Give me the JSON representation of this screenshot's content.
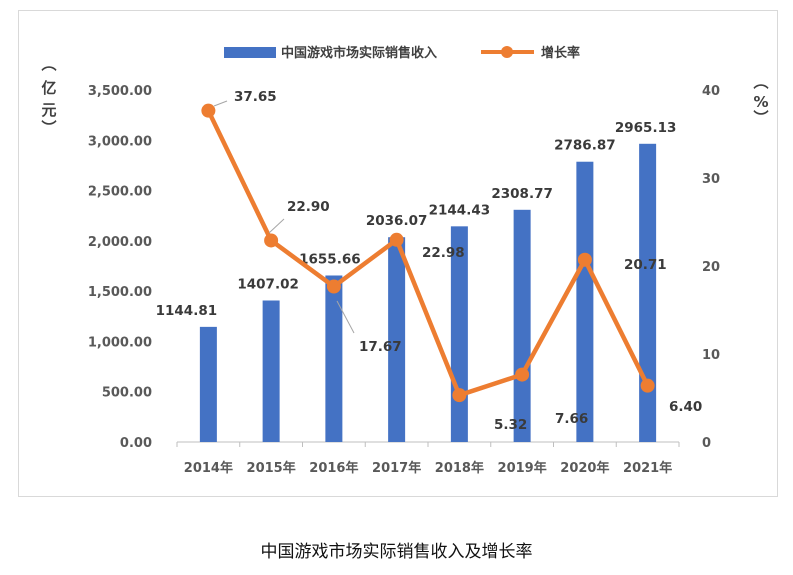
{
  "caption": "中国游戏市场实际销售收入及增长率",
  "chart_data": {
    "type": "bar",
    "categories": [
      "2014年",
      "2015年",
      "2016年",
      "2017年",
      "2018年",
      "2019年",
      "2020年",
      "2021年"
    ],
    "series": [
      {
        "name": "中国游戏市场实际销售收入",
        "kind": "bar",
        "axis": "left",
        "values": [
          1144.81,
          1407.02,
          1655.66,
          2036.07,
          2144.43,
          2308.77,
          2786.87,
          2965.13
        ],
        "labels": [
          "1144.81",
          "1407.02",
          "1655.66",
          "2036.07",
          "2144.43",
          "2308.77",
          "2786.87",
          "2965.13"
        ],
        "color": "#4472C4"
      },
      {
        "name": "增长率",
        "kind": "line",
        "axis": "right",
        "values": [
          37.65,
          22.9,
          17.67,
          22.98,
          5.32,
          7.66,
          20.71,
          6.4
        ],
        "labels": [
          "37.65",
          "22.90",
          "17.67",
          "22.98",
          "5.32",
          "7.66",
          "20.71",
          "6.40"
        ],
        "color": "#ED7D31"
      }
    ],
    "y_left": {
      "label": "亿元",
      "ylim": [
        0,
        3500
      ],
      "ticks": [
        0,
        500,
        1000,
        1500,
        2000,
        2500,
        3000,
        3500
      ],
      "tick_labels": [
        "0.00",
        "500.00",
        "1,000.00",
        "1,500.00",
        "2,000.00",
        "2,500.00",
        "3,000.00",
        "3,500.00"
      ]
    },
    "y_right": {
      "label": "%",
      "ylim": [
        0,
        40
      ],
      "ticks": [
        0,
        10,
        20,
        30,
        40
      ],
      "tick_labels": [
        "0",
        "10",
        "20",
        "30",
        "40"
      ]
    },
    "grid": false,
    "legend_position": "top-center"
  }
}
